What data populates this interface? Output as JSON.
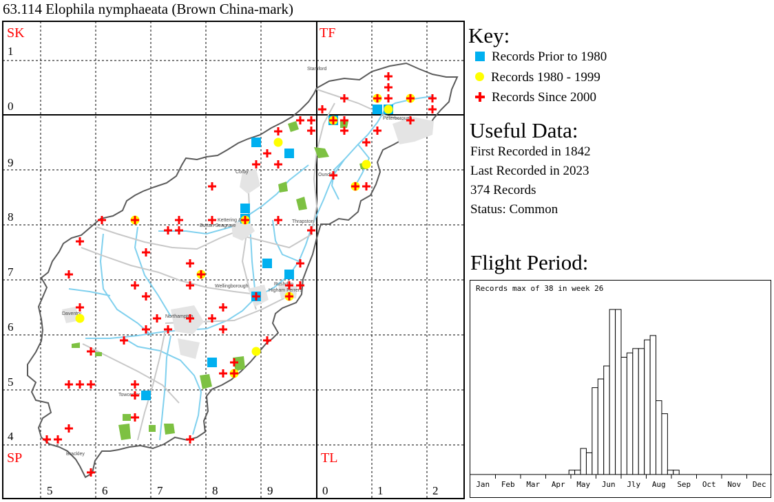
{
  "title": "63.114 Elophila nymphaeata (Brown China-mark)",
  "map": {
    "squares": [
      "SK",
      "TF",
      "SP",
      "TL"
    ],
    "easting_labels": [
      "5",
      "6",
      "7",
      "8",
      "9",
      "0",
      "1",
      "2"
    ],
    "northing_labels": [
      "1",
      "0",
      "9",
      "8",
      "7",
      "6",
      "5",
      "4"
    ],
    "town_labels": [
      "Stamford",
      "Peterborough",
      "Corby",
      "Oundle",
      "Kettering &",
      "Burton Seagrave",
      "Thrapston",
      "Wellingborough",
      "Rushden",
      "Higham Ferrers",
      "Daventry",
      "Northampton",
      "Towcester",
      "Brackley"
    ],
    "colors": {
      "prior_1980": "#00b0f0",
      "1980_1999": "#ffff00",
      "since_2000": "#ff0000",
      "grid_label": "#ff0000"
    }
  },
  "key": {
    "heading": "Key:",
    "items": [
      {
        "symbol": "blue-square",
        "label": "Records Prior to 1980"
      },
      {
        "symbol": "yellow-circle",
        "label": "Records 1980 - 1999"
      },
      {
        "symbol": "red-plus",
        "label": "Records Since 2000"
      }
    ]
  },
  "useful_data": {
    "heading": "Useful Data:",
    "first_recorded": "First Recorded in 1842",
    "last_recorded": "Last Recorded in 2023",
    "records": "374 Records",
    "status": "Status: Common"
  },
  "flight_period": {
    "heading": "Flight Period:",
    "note": "Records max of 38 in week 26"
  },
  "chart_data": {
    "type": "bar",
    "title": "Records max of 38 in week 26",
    "x_unit": "week",
    "months": [
      "Jan",
      "Feb",
      "Mar",
      "Apr",
      "May",
      "Jun",
      "Jly",
      "Aug",
      "Sep",
      "Oct",
      "Nov",
      "Dec"
    ],
    "weeks": [
      18,
      19,
      20,
      21,
      22,
      23,
      24,
      25,
      26,
      27,
      28,
      29,
      30,
      31,
      32,
      33,
      34,
      35,
      36
    ],
    "values": [
      1,
      1,
      6,
      5,
      20,
      22,
      25,
      38,
      38,
      27,
      28,
      29,
      29,
      31,
      32,
      17,
      14,
      1,
      1
    ],
    "ylim": [
      0,
      38
    ]
  }
}
